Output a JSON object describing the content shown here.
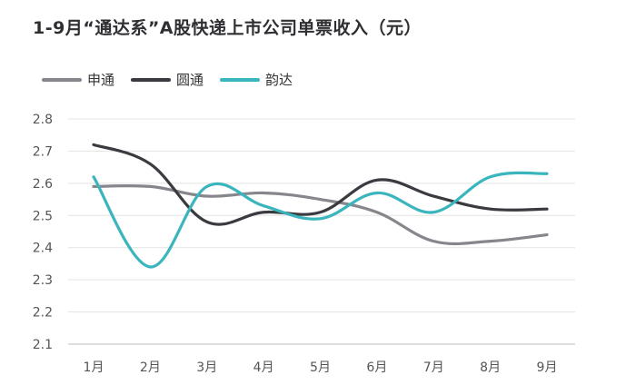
{
  "chart_data": {
    "type": "line",
    "title": "1-9月“通达系”A股快递上市公司单票收入（元）",
    "categories": [
      "1月",
      "2月",
      "3月",
      "4月",
      "5月",
      "6月",
      "7月",
      "8月",
      "9月"
    ],
    "series": [
      {
        "name": "申通",
        "color": "#86868c",
        "values": [
          2.59,
          2.59,
          2.56,
          2.57,
          2.55,
          2.51,
          2.42,
          2.42,
          2.44
        ]
      },
      {
        "name": "圆通",
        "color": "#3a3b40",
        "values": [
          2.72,
          2.66,
          2.48,
          2.51,
          2.51,
          2.61,
          2.56,
          2.52,
          2.52
        ]
      },
      {
        "name": "韵达",
        "color": "#3bb5bd",
        "values": [
          2.62,
          2.34,
          2.59,
          2.53,
          2.49,
          2.57,
          2.51,
          2.62,
          2.63
        ]
      }
    ],
    "ylim": [
      2.1,
      2.8
    ],
    "yticks": [
      "2.8",
      "2.7",
      "2.6",
      "2.5",
      "2.4",
      "2.3",
      "2.2",
      "2.1"
    ],
    "grid": true,
    "legend_position": "top-left"
  }
}
